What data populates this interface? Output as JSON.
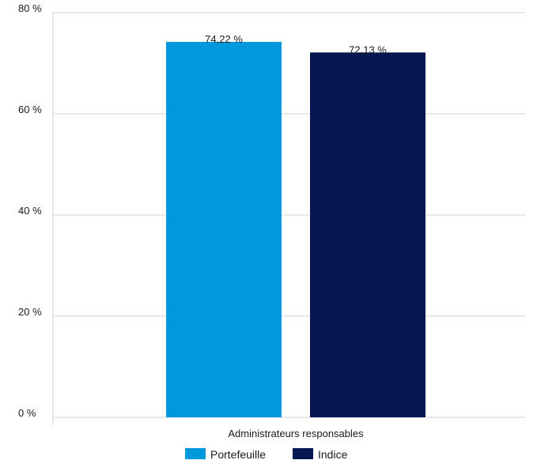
{
  "chart_data": {
    "type": "bar",
    "categories": [
      "Administrateurs responsables"
    ],
    "series": [
      {
        "name": "Portefeuille",
        "values": [
          74.22
        ],
        "label": "74,22 %",
        "color": "#0099dd"
      },
      {
        "name": "Indice",
        "values": [
          72.13
        ],
        "label": "72,13 %",
        "color": "#06174f"
      }
    ],
    "ylim": [
      0,
      80
    ],
    "yticks": [
      {
        "value": 0,
        "label": "0 %"
      },
      {
        "value": 20,
        "label": "20 %"
      },
      {
        "value": 40,
        "label": "40 %"
      },
      {
        "value": 60,
        "label": "60 %"
      },
      {
        "value": 80,
        "label": "80 %"
      }
    ],
    "grid": true,
    "grid_color": "#c8d3e0",
    "legend_position": "bottom"
  }
}
